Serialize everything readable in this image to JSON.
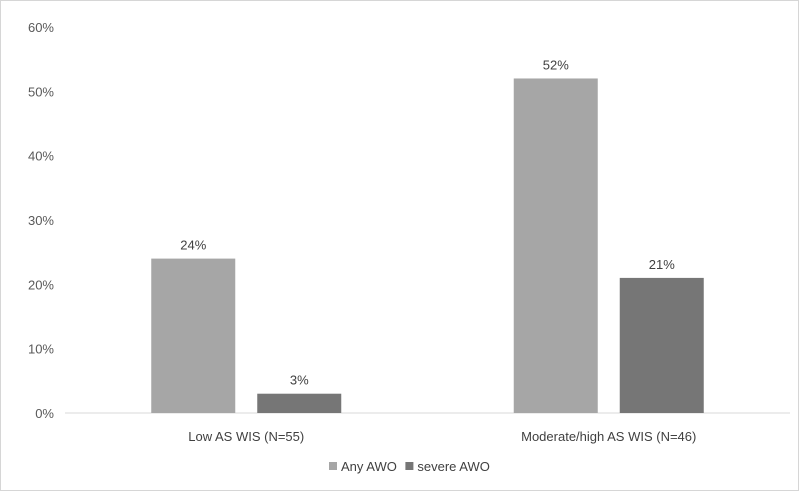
{
  "chart_data": {
    "type": "bar",
    "categories": [
      "Low AS WIS (N=55)",
      "Moderate/high AS WIS (N=46)"
    ],
    "series": [
      {
        "name": "Any AWO",
        "values": [
          24,
          52
        ],
        "labels": [
          "24%",
          "52%"
        ],
        "color": "#a6a6a6"
      },
      {
        "name": "severe AWO",
        "values": [
          3,
          21
        ],
        "labels": [
          "3%",
          "21%"
        ],
        "color": "#767676"
      }
    ],
    "yticks": [
      "0%",
      "10%",
      "20%",
      "30%",
      "40%",
      "50%",
      "60%"
    ],
    "ylim": [
      0,
      60
    ],
    "grid": false,
    "legend_position": "bottom"
  }
}
